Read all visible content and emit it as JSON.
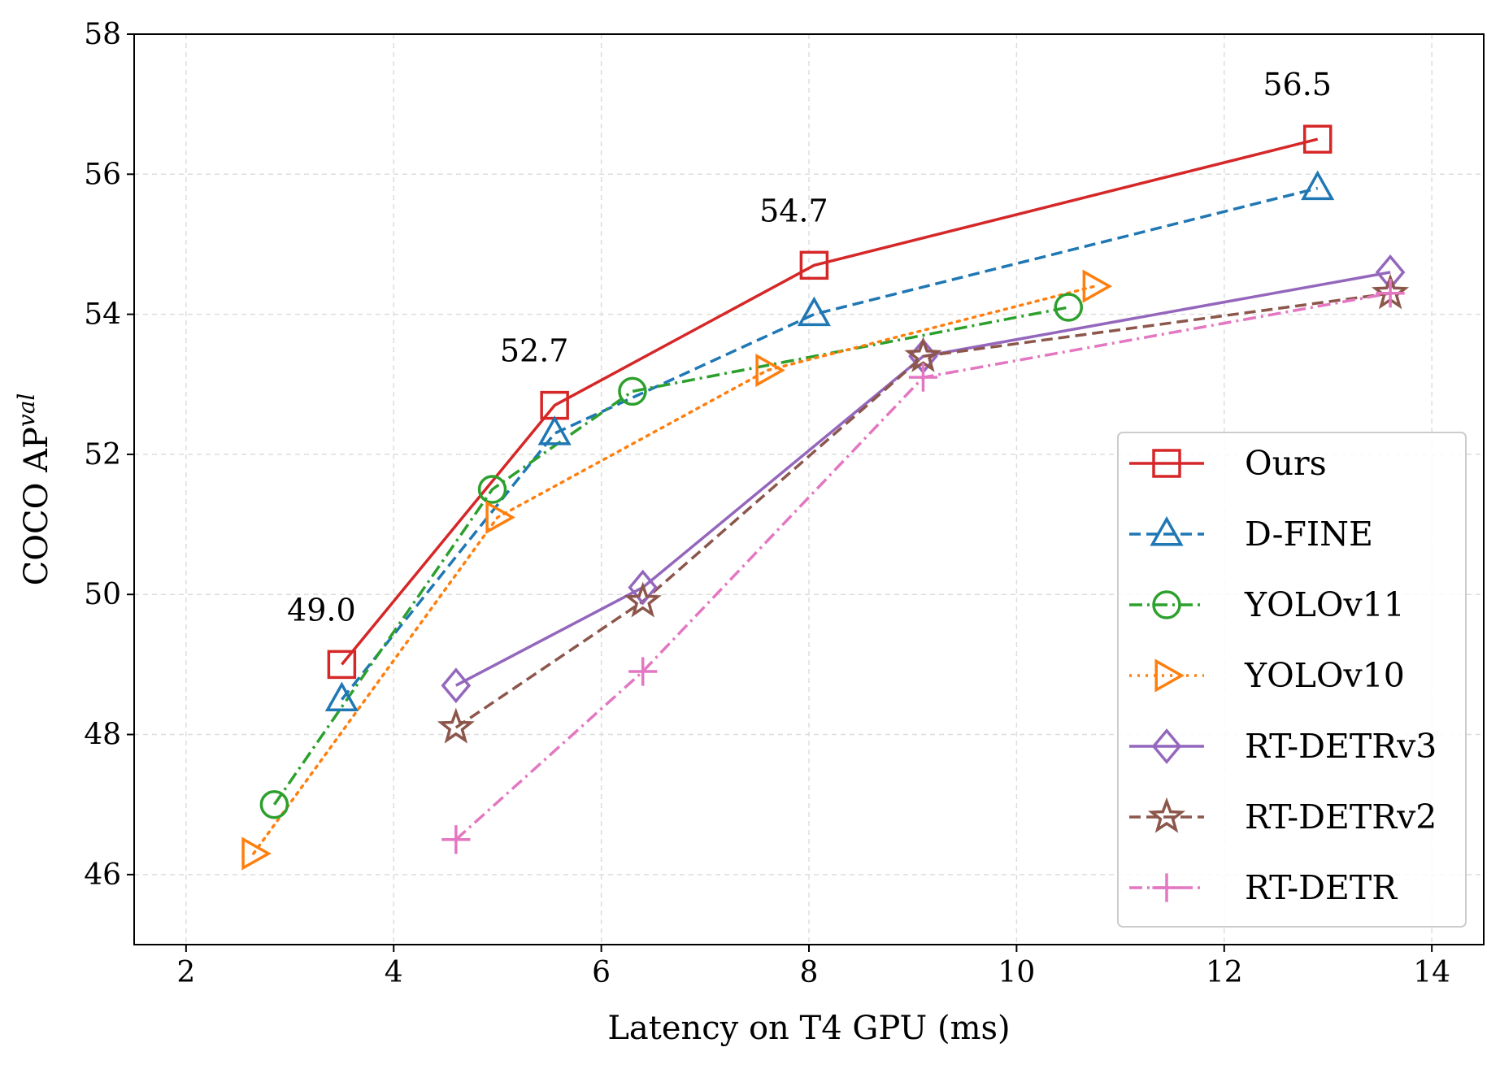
{
  "chart_data": {
    "type": "line",
    "xlabel": "Latency on T4 GPU (ms)",
    "ylabel": "COCO AP",
    "ylabel_sup": "val",
    "xlim": [
      1.5,
      14.5
    ],
    "ylim": [
      45,
      58
    ],
    "xticks": [
      2,
      4,
      6,
      8,
      10,
      12,
      14
    ],
    "yticks": [
      46,
      48,
      50,
      52,
      54,
      56,
      58
    ],
    "grid": true,
    "legend_position": "lower-right",
    "series": [
      {
        "name": "Ours",
        "color": "#d62728",
        "marker": "square",
        "dash": "solid",
        "x": [
          3.5,
          5.55,
          8.05,
          12.9
        ],
        "y": [
          49.0,
          52.7,
          54.7,
          56.5
        ]
      },
      {
        "name": "D-FINE",
        "color": "#1f77b4",
        "marker": "triangle",
        "dash": "dashed",
        "x": [
          3.5,
          5.55,
          8.05,
          12.9
        ],
        "y": [
          48.5,
          52.3,
          54.0,
          55.8
        ]
      },
      {
        "name": "YOLOv11",
        "color": "#2ca02c",
        "marker": "circle",
        "dash": "dashdot",
        "x": [
          2.85,
          4.95,
          6.3,
          10.5
        ],
        "y": [
          47.0,
          51.5,
          52.9,
          54.1
        ]
      },
      {
        "name": "YOLOv10",
        "color": "#ff7f0e",
        "marker": "triangle-right",
        "dash": "dotted",
        "x": [
          2.65,
          5.0,
          7.6,
          10.75
        ],
        "y": [
          46.3,
          51.1,
          53.2,
          54.4
        ]
      },
      {
        "name": "RT-DETRv3",
        "color": "#9467bd",
        "marker": "diamond",
        "dash": "solid",
        "x": [
          4.6,
          6.4,
          9.1,
          13.6
        ],
        "y": [
          48.7,
          50.1,
          53.4,
          54.6
        ]
      },
      {
        "name": "RT-DETRv2",
        "color": "#8c564b",
        "marker": "star",
        "dash": "dashed",
        "x": [
          4.6,
          6.4,
          9.1,
          13.6
        ],
        "y": [
          48.1,
          49.9,
          53.4,
          54.3
        ]
      },
      {
        "name": "RT-DETR",
        "color": "#e377c2",
        "marker": "plus",
        "dash": "dashdot",
        "x": [
          4.6,
          6.4,
          9.1,
          13.6
        ],
        "y": [
          46.5,
          48.9,
          53.1,
          54.3
        ]
      }
    ],
    "annotations": [
      {
        "text": "49.0",
        "x": 3.5,
        "y": 49.0
      },
      {
        "text": "52.7",
        "x": 5.55,
        "y": 52.7
      },
      {
        "text": "54.7",
        "x": 8.05,
        "y": 54.7
      },
      {
        "text": "56.5",
        "x": 12.9,
        "y": 56.5
      }
    ]
  }
}
